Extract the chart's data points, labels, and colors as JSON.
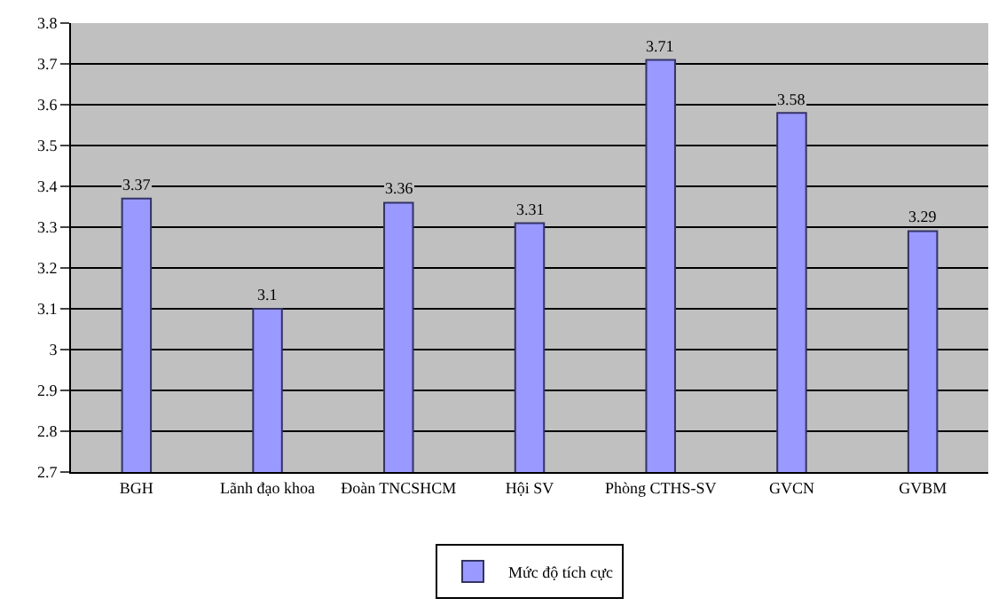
{
  "chart_data": {
    "type": "bar",
    "categories": [
      "BGH",
      "Lãnh đạo khoa",
      "Đoàn TNCSHCM",
      "Hội SV",
      "Phòng CTHS-SV",
      "GVCN",
      "GVBM"
    ],
    "series": [
      {
        "name": "Mức độ tích cực",
        "color": "#9999ff",
        "values": [
          3.37,
          3.1,
          3.36,
          3.31,
          3.71,
          3.58,
          3.29
        ]
      }
    ],
    "ylim": [
      2.7,
      3.8
    ],
    "yticks": [
      2.7,
      2.8,
      2.9,
      3,
      3.1,
      3.2,
      3.3,
      3.4,
      3.5,
      3.6,
      3.7,
      3.8
    ],
    "grid": "y",
    "legend": "bottom",
    "data_labels": true
  }
}
